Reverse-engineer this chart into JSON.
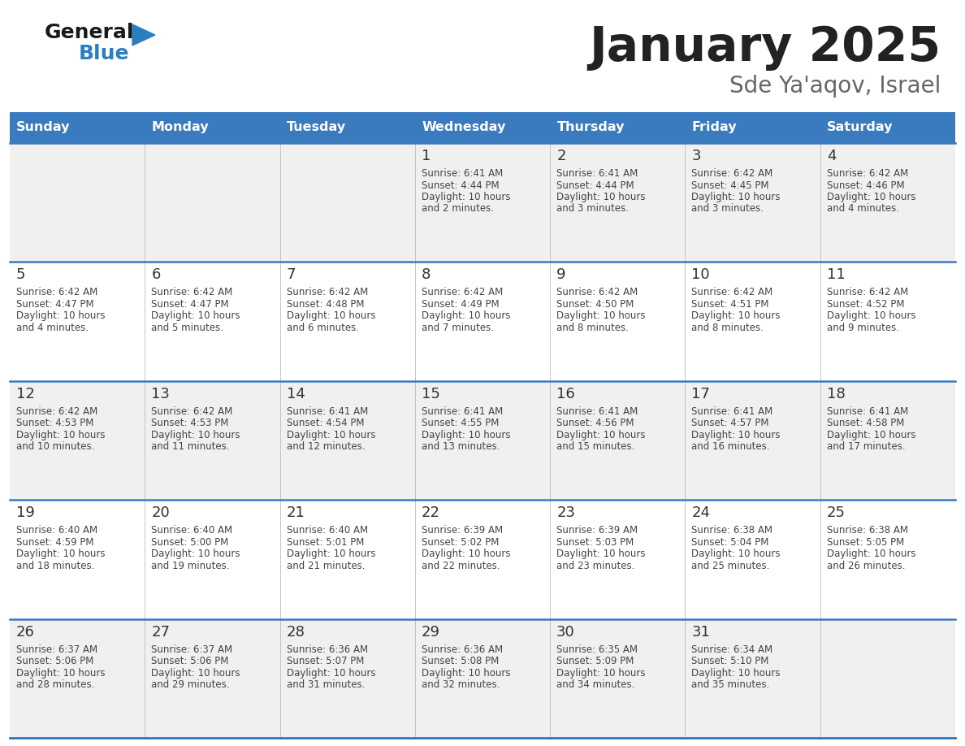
{
  "title": "January 2025",
  "subtitle": "Sde Ya'aqov, Israel",
  "days_of_week": [
    "Sunday",
    "Monday",
    "Tuesday",
    "Wednesday",
    "Thursday",
    "Friday",
    "Saturday"
  ],
  "header_bg": "#3a7abf",
  "header_text": "#ffffff",
  "row_bg_odd": "#f0f0f0",
  "row_bg_even": "#ffffff",
  "cell_text": "#444444",
  "day_num_color": "#333333",
  "grid_line_color": "#3a7abf",
  "title_color": "#222222",
  "subtitle_color": "#666666",
  "logo_general_color": "#1a1a1a",
  "logo_blue_color": "#2a7fc1",
  "calendar_data": [
    [
      null,
      null,
      null,
      {
        "day": 1,
        "sunrise": "6:41 AM",
        "sunset": "4:44 PM",
        "daylight": "10 hours and 2 minutes."
      },
      {
        "day": 2,
        "sunrise": "6:41 AM",
        "sunset": "4:44 PM",
        "daylight": "10 hours and 3 minutes."
      },
      {
        "day": 3,
        "sunrise": "6:42 AM",
        "sunset": "4:45 PM",
        "daylight": "10 hours and 3 minutes."
      },
      {
        "day": 4,
        "sunrise": "6:42 AM",
        "sunset": "4:46 PM",
        "daylight": "10 hours and 4 minutes."
      }
    ],
    [
      {
        "day": 5,
        "sunrise": "6:42 AM",
        "sunset": "4:47 PM",
        "daylight": "10 hours and 4 minutes."
      },
      {
        "day": 6,
        "sunrise": "6:42 AM",
        "sunset": "4:47 PM",
        "daylight": "10 hours and 5 minutes."
      },
      {
        "day": 7,
        "sunrise": "6:42 AM",
        "sunset": "4:48 PM",
        "daylight": "10 hours and 6 minutes."
      },
      {
        "day": 8,
        "sunrise": "6:42 AM",
        "sunset": "4:49 PM",
        "daylight": "10 hours and 7 minutes."
      },
      {
        "day": 9,
        "sunrise": "6:42 AM",
        "sunset": "4:50 PM",
        "daylight": "10 hours and 8 minutes."
      },
      {
        "day": 10,
        "sunrise": "6:42 AM",
        "sunset": "4:51 PM",
        "daylight": "10 hours and 8 minutes."
      },
      {
        "day": 11,
        "sunrise": "6:42 AM",
        "sunset": "4:52 PM",
        "daylight": "10 hours and 9 minutes."
      }
    ],
    [
      {
        "day": 12,
        "sunrise": "6:42 AM",
        "sunset": "4:53 PM",
        "daylight": "10 hours and 10 minutes."
      },
      {
        "day": 13,
        "sunrise": "6:42 AM",
        "sunset": "4:53 PM",
        "daylight": "10 hours and 11 minutes."
      },
      {
        "day": 14,
        "sunrise": "6:41 AM",
        "sunset": "4:54 PM",
        "daylight": "10 hours and 12 minutes."
      },
      {
        "day": 15,
        "sunrise": "6:41 AM",
        "sunset": "4:55 PM",
        "daylight": "10 hours and 13 minutes."
      },
      {
        "day": 16,
        "sunrise": "6:41 AM",
        "sunset": "4:56 PM",
        "daylight": "10 hours and 15 minutes."
      },
      {
        "day": 17,
        "sunrise": "6:41 AM",
        "sunset": "4:57 PM",
        "daylight": "10 hours and 16 minutes."
      },
      {
        "day": 18,
        "sunrise": "6:41 AM",
        "sunset": "4:58 PM",
        "daylight": "10 hours and 17 minutes."
      }
    ],
    [
      {
        "day": 19,
        "sunrise": "6:40 AM",
        "sunset": "4:59 PM",
        "daylight": "10 hours and 18 minutes."
      },
      {
        "day": 20,
        "sunrise": "6:40 AM",
        "sunset": "5:00 PM",
        "daylight": "10 hours and 19 minutes."
      },
      {
        "day": 21,
        "sunrise": "6:40 AM",
        "sunset": "5:01 PM",
        "daylight": "10 hours and 21 minutes."
      },
      {
        "day": 22,
        "sunrise": "6:39 AM",
        "sunset": "5:02 PM",
        "daylight": "10 hours and 22 minutes."
      },
      {
        "day": 23,
        "sunrise": "6:39 AM",
        "sunset": "5:03 PM",
        "daylight": "10 hours and 23 minutes."
      },
      {
        "day": 24,
        "sunrise": "6:38 AM",
        "sunset": "5:04 PM",
        "daylight": "10 hours and 25 minutes."
      },
      {
        "day": 25,
        "sunrise": "6:38 AM",
        "sunset": "5:05 PM",
        "daylight": "10 hours and 26 minutes."
      }
    ],
    [
      {
        "day": 26,
        "sunrise": "6:37 AM",
        "sunset": "5:06 PM",
        "daylight": "10 hours and 28 minutes."
      },
      {
        "day": 27,
        "sunrise": "6:37 AM",
        "sunset": "5:06 PM",
        "daylight": "10 hours and 29 minutes."
      },
      {
        "day": 28,
        "sunrise": "6:36 AM",
        "sunset": "5:07 PM",
        "daylight": "10 hours and 31 minutes."
      },
      {
        "day": 29,
        "sunrise": "6:36 AM",
        "sunset": "5:08 PM",
        "daylight": "10 hours and 32 minutes."
      },
      {
        "day": 30,
        "sunrise": "6:35 AM",
        "sunset": "5:09 PM",
        "daylight": "10 hours and 34 minutes."
      },
      {
        "day": 31,
        "sunrise": "6:34 AM",
        "sunset": "5:10 PM",
        "daylight": "10 hours and 35 minutes."
      },
      null
    ]
  ]
}
